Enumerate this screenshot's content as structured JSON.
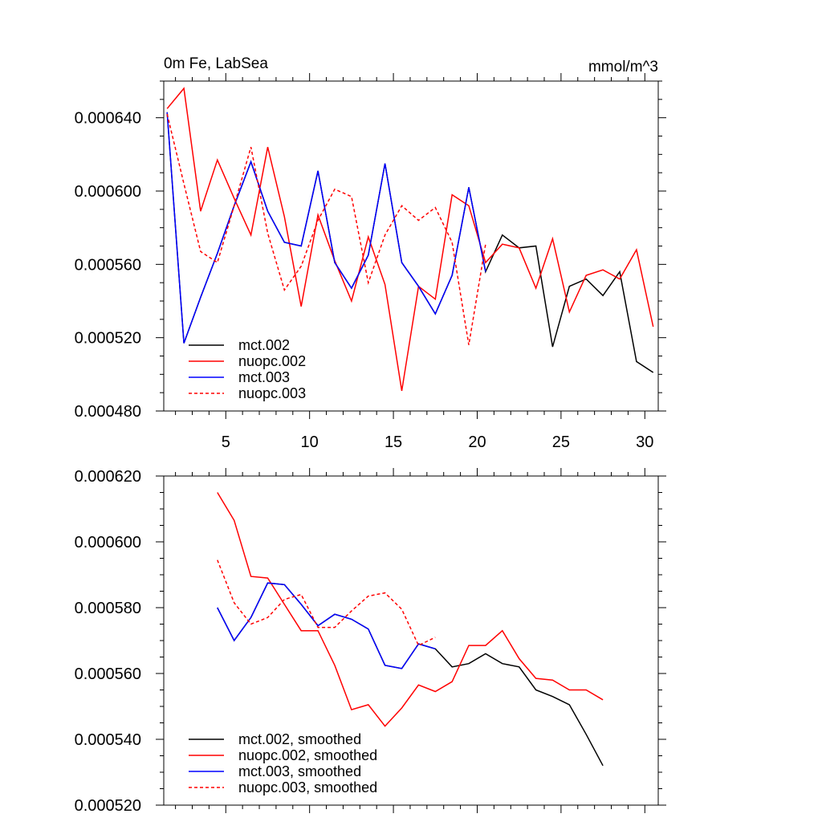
{
  "chart_data": [
    {
      "type": "line",
      "title": "0m Fe, LabSea",
      "units_label": "mmol/m^3",
      "xlim": [
        1.3,
        30.8
      ],
      "ylim": [
        0.00048,
        0.00066
      ],
      "xticks": [
        5,
        10,
        15,
        20,
        25,
        30
      ],
      "yticks": [
        0.00048,
        0.00052,
        0.00056,
        0.0006,
        0.00064
      ],
      "ytick_labels": [
        "0.000480",
        "0.000520",
        "0.000560",
        "0.000600",
        "0.000640"
      ],
      "legend": "bottom-left",
      "grid": false,
      "series": [
        {
          "name": "mct.002",
          "color": "#000000",
          "dash": "solid",
          "x": [
            1.5,
            2.5,
            3.5,
            4.5,
            5.5,
            6.5,
            7.5,
            8.5,
            9.5,
            10.5,
            11.5,
            12.5,
            13.5,
            14.5,
            15.5,
            16.5,
            17.5,
            18.5,
            19.5,
            20.5,
            21.5,
            22.5,
            23.5,
            24.5,
            25.5,
            26.5,
            27.5,
            28.5,
            29.5,
            30.5
          ],
          "values": [
            0.000643,
            0.000517,
            0.000542,
            0.000566,
            0.000592,
            0.000616,
            0.000589,
            0.000572,
            0.00057,
            0.000611,
            0.000561,
            0.000547,
            0.000565,
            0.000615,
            0.000561,
            0.000548,
            0.000533,
            0.000554,
            0.000602,
            0.000556,
            0.000576,
            0.000569,
            0.00057,
            0.000515,
            0.000548,
            0.000552,
            0.000543,
            0.000556,
            0.000507,
            0.000501
          ]
        },
        {
          "name": "nuopc.002",
          "color": "#ff0000",
          "dash": "solid",
          "x": [
            1.5,
            2.5,
            3.5,
            4.5,
            5.5,
            6.5,
            7.5,
            8.5,
            9.5,
            10.5,
            11.5,
            12.5,
            13.5,
            14.5,
            15.5,
            16.5,
            17.5,
            18.5,
            19.5,
            20.5,
            21.5,
            22.5,
            23.5,
            24.5,
            25.5,
            26.5,
            27.5,
            28.5,
            29.5,
            30.5
          ],
          "values": [
            0.000645,
            0.000656,
            0.000589,
            0.000617,
            0.000596,
            0.000576,
            0.000624,
            0.000586,
            0.000537,
            0.000587,
            0.000562,
            0.00054,
            0.000575,
            0.000549,
            0.000491,
            0.000548,
            0.000541,
            0.000598,
            0.000592,
            0.000561,
            0.000571,
            0.000569,
            0.000547,
            0.000574,
            0.000534,
            0.000554,
            0.000557,
            0.000552,
            0.000568,
            0.000526
          ]
        },
        {
          "name": "mct.003",
          "color": "#0000ff",
          "dash": "solid",
          "x": [
            1.5,
            2.5,
            3.5,
            4.5,
            5.5,
            6.5,
            7.5,
            8.5,
            9.5,
            10.5,
            11.5,
            12.5,
            13.5,
            14.5,
            15.5,
            16.5,
            17.5,
            18.5,
            19.5,
            20.5
          ],
          "values": [
            0.000643,
            0.000517,
            0.000542,
            0.000566,
            0.000592,
            0.000616,
            0.000589,
            0.000572,
            0.00057,
            0.000611,
            0.000561,
            0.000547,
            0.000565,
            0.000615,
            0.000561,
            0.000548,
            0.000533,
            0.000554,
            0.000602,
            0.000556
          ]
        },
        {
          "name": "nuopc.003",
          "color": "#ff0000",
          "dash": "dashed",
          "x": [
            1.5,
            2.5,
            3.5,
            4.5,
            5.5,
            6.5,
            7.5,
            8.5,
            9.5,
            10.5,
            11.5,
            12.5,
            13.5,
            14.5,
            15.5,
            16.5,
            17.5,
            18.5,
            19.5,
            20.5
          ],
          "values": [
            0.000642,
            0.000604,
            0.000567,
            0.000561,
            0.000592,
            0.000624,
            0.000577,
            0.000546,
            0.000559,
            0.000584,
            0.000601,
            0.000597,
            0.00055,
            0.000576,
            0.000592,
            0.000584,
            0.000591,
            0.000572,
            0.000516,
            0.000571
          ]
        }
      ]
    },
    {
      "type": "line",
      "title": "",
      "xlim": [
        1.3,
        30.8
      ],
      "ylim": [
        0.00052,
        0.00062
      ],
      "xticks": [
        5,
        10,
        15,
        20,
        25,
        30
      ],
      "yticks": [
        0.00052,
        0.00054,
        0.00056,
        0.00058,
        0.0006,
        0.00062
      ],
      "ytick_labels": [
        "0.000520",
        "0.000540",
        "0.000560",
        "0.000580",
        "0.000600",
        "0.000620"
      ],
      "legend": "bottom-left",
      "grid": false,
      "series": [
        {
          "name": "mct.002, smoothed",
          "color": "#000000",
          "dash": "solid",
          "x": [
            4.5,
            5.5,
            6.5,
            7.5,
            8.5,
            9.5,
            10.5,
            11.5,
            12.5,
            13.5,
            14.5,
            15.5,
            16.5,
            17.5,
            18.5,
            19.5,
            20.5,
            21.5,
            22.5,
            23.5,
            24.5,
            25.5,
            26.5,
            27.5
          ],
          "values": [
            0.00058,
            0.00057,
            0.000577,
            0.0005875,
            0.000587,
            0.000581,
            0.0005745,
            0.000578,
            0.0005765,
            0.0005735,
            0.0005625,
            0.0005615,
            0.000569,
            0.0005675,
            0.000562,
            0.000563,
            0.000566,
            0.000563,
            0.000562,
            0.000555,
            0.000553,
            0.0005505,
            0.0005415,
            0.000532
          ]
        },
        {
          "name": "nuopc.002, smoothed",
          "color": "#ff0000",
          "dash": "solid",
          "x": [
            4.5,
            5.5,
            6.5,
            7.5,
            8.5,
            9.5,
            10.5,
            11.5,
            12.5,
            13.5,
            14.5,
            15.5,
            16.5,
            17.5,
            18.5,
            19.5,
            20.5,
            21.5,
            22.5,
            23.5,
            24.5,
            25.5,
            26.5,
            27.5
          ],
          "values": [
            0.000615,
            0.0006065,
            0.0005895,
            0.000589,
            0.000581,
            0.000573,
            0.000573,
            0.0005625,
            0.000549,
            0.0005505,
            0.000544,
            0.0005495,
            0.0005565,
            0.0005545,
            0.0005575,
            0.0005685,
            0.0005685,
            0.000573,
            0.0005645,
            0.0005585,
            0.000558,
            0.000555,
            0.000555,
            0.000552
          ]
        },
        {
          "name": "mct.003, smoothed",
          "color": "#0000ff",
          "dash": "solid",
          "x": [
            4.5,
            5.5,
            6.5,
            7.5,
            8.5,
            9.5,
            10.5,
            11.5,
            12.5,
            13.5,
            14.5,
            15.5,
            16.5,
            17.5
          ],
          "values": [
            0.00058,
            0.00057,
            0.000577,
            0.0005875,
            0.000587,
            0.000581,
            0.0005745,
            0.000578,
            0.0005765,
            0.0005735,
            0.0005625,
            0.0005615,
            0.000569,
            0.0005675
          ]
        },
        {
          "name": "nuopc.003, smoothed",
          "color": "#ff0000",
          "dash": "dashed",
          "x": [
            4.5,
            5.5,
            6.5,
            7.5,
            8.5,
            9.5,
            10.5,
            11.5,
            12.5,
            13.5,
            14.5,
            15.5,
            16.5,
            17.5
          ],
          "values": [
            0.0005945,
            0.0005815,
            0.000575,
            0.000577,
            0.0005825,
            0.000584,
            0.000574,
            0.000574,
            0.000579,
            0.0005835,
            0.0005845,
            0.0005795,
            0.0005685,
            0.000571
          ]
        }
      ]
    }
  ]
}
